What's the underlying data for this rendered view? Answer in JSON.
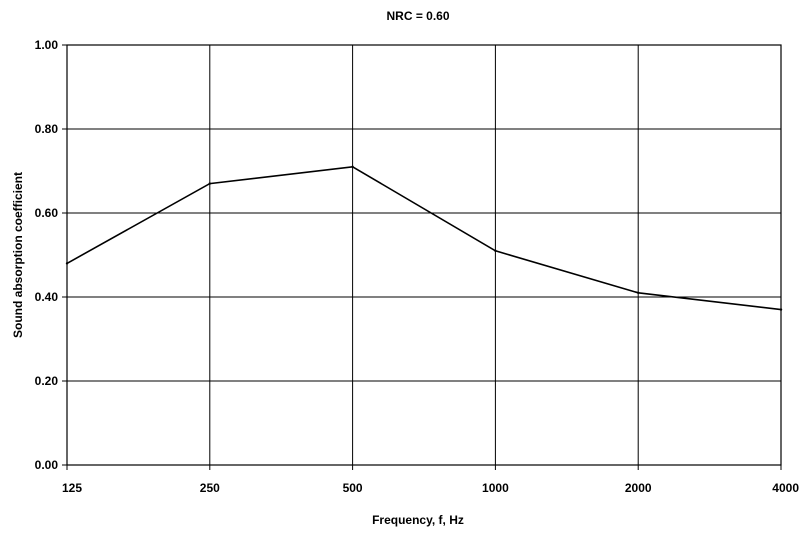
{
  "chart_data": {
    "type": "line",
    "title": "NRC =  0.60",
    "xlabel": "Frequency, f, Hz",
    "ylabel": "Sound absorption coefficient",
    "categories": [
      "125",
      "250",
      "500",
      "1000",
      "2000",
      "4000"
    ],
    "series": [
      {
        "values": [
          0.48,
          0.67,
          0.71,
          0.51,
          0.41,
          0.37
        ]
      }
    ],
    "ylim": [
      0,
      1
    ],
    "yticks": [
      "0.00",
      "0.20",
      "0.40",
      "0.60",
      "0.80",
      "1.00"
    ],
    "grid": true,
    "legend": "none",
    "colors": {
      "line": "#000000",
      "grid": "#000000",
      "background": "#ffffff"
    }
  }
}
